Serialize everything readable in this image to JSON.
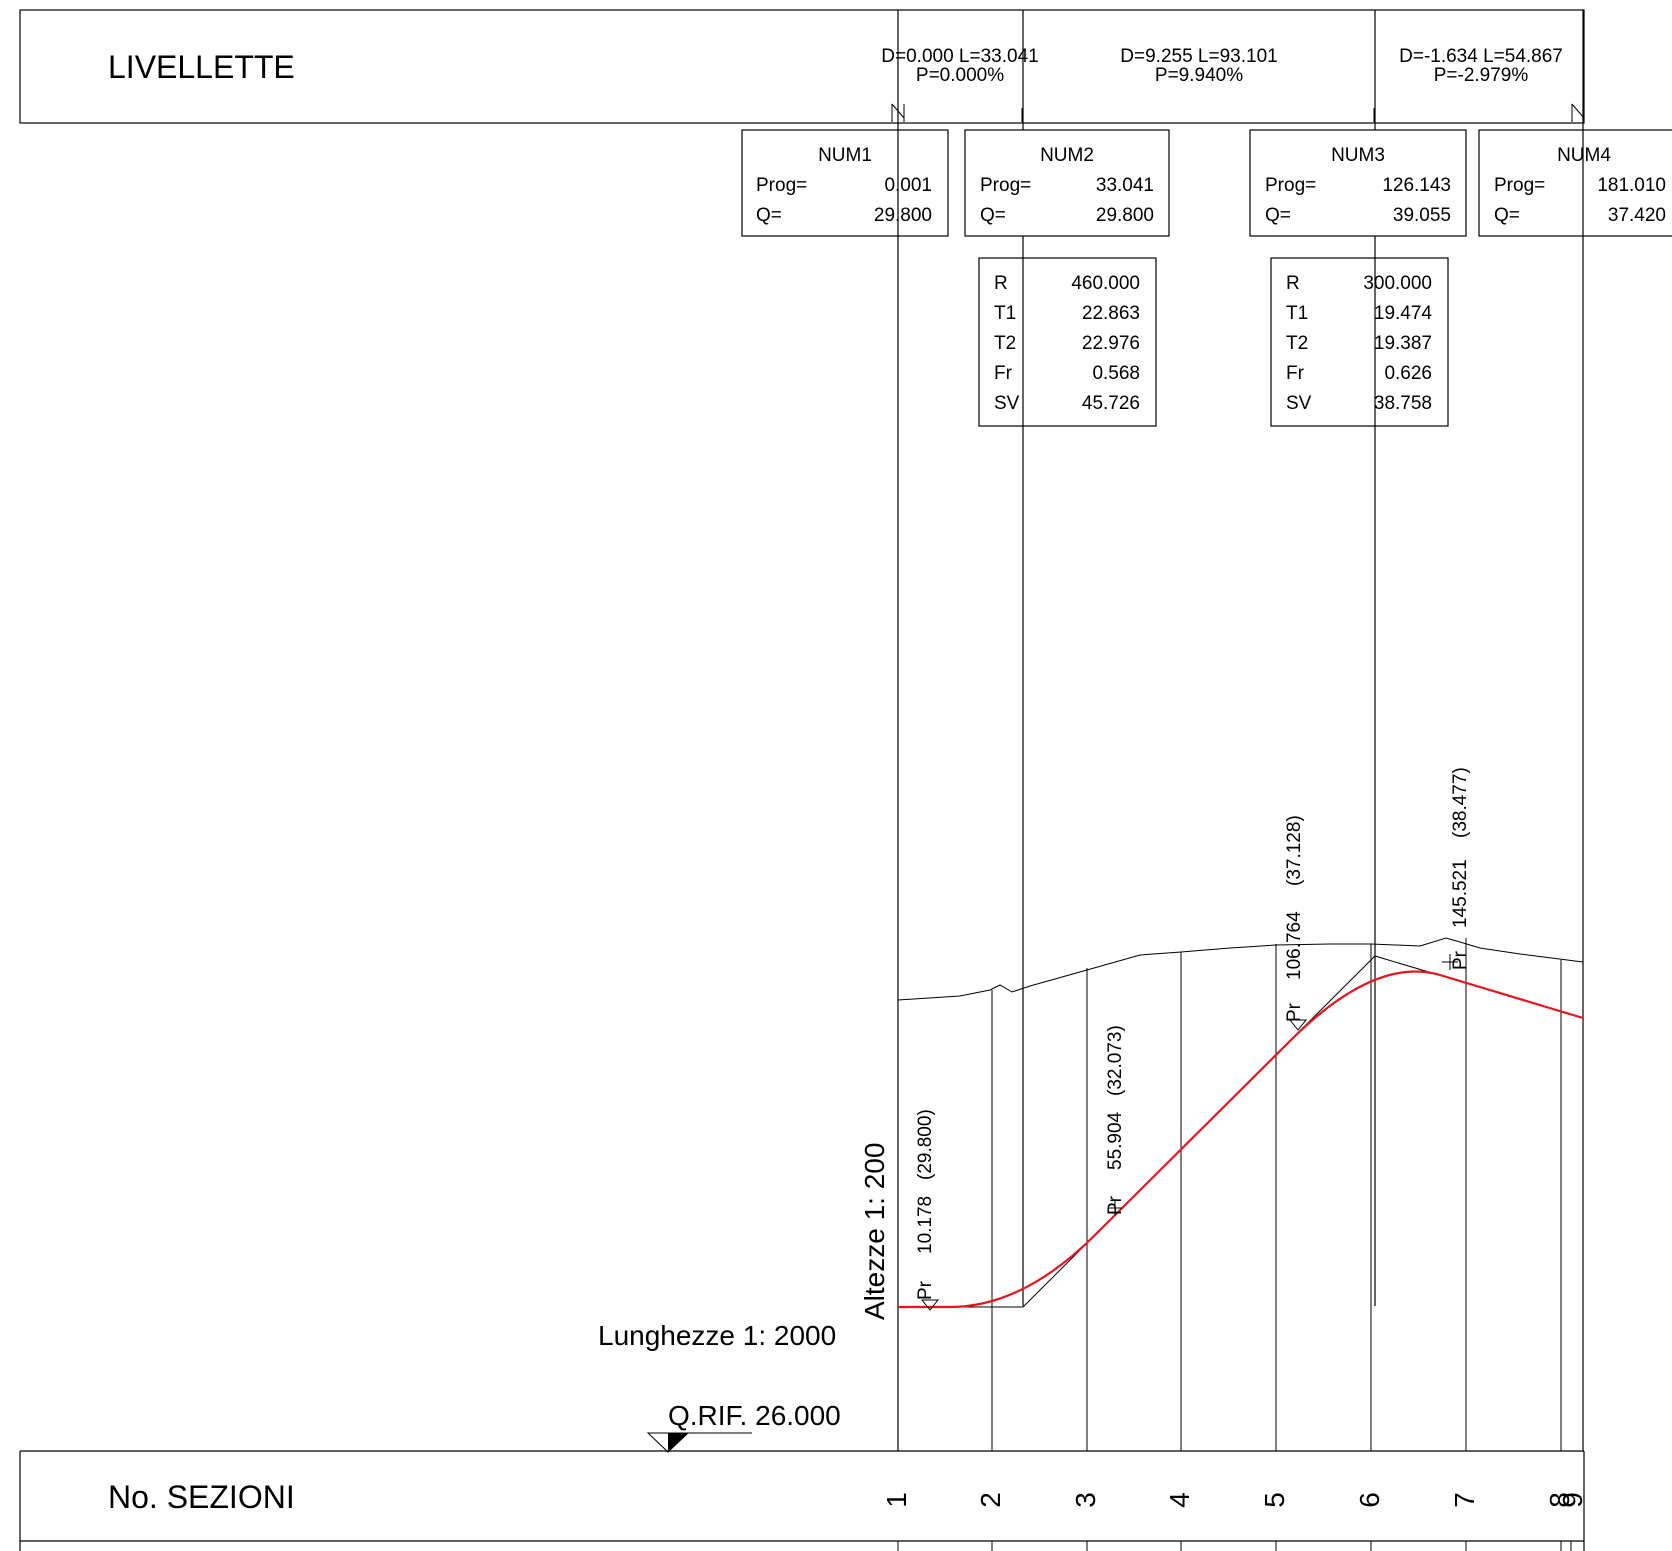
{
  "header": {
    "title": "LIVELLETTE",
    "segments": [
      {
        "line1": "D=0.000 L=33.041",
        "line2": "P=0.000%"
      },
      {
        "line1": "D=9.255 L=93.101",
        "line2": "P=9.940%"
      },
      {
        "line1": "D=-1.634 L=54.867",
        "line2": "P=-2.979%"
      }
    ]
  },
  "vertices": [
    {
      "name": "NUM1",
      "prog_label": "Prog=",
      "prog": "0.001",
      "q_label": "Q=",
      "q": "29.800"
    },
    {
      "name": "NUM2",
      "prog_label": "Prog=",
      "prog": "33.041",
      "q_label": "Q=",
      "q": "29.800"
    },
    {
      "name": "NUM3",
      "prog_label": "Prog=",
      "prog": "126.143",
      "q_label": "Q=",
      "q": "39.055"
    },
    {
      "name": "NUM4",
      "prog_label": "Prog=",
      "prog": "181.010",
      "q_label": "Q=",
      "q": "37.420"
    }
  ],
  "curves": [
    {
      "rows": [
        [
          "R",
          "460.000"
        ],
        [
          "T1",
          "22.863"
        ],
        [
          "T2",
          "22.976"
        ],
        [
          "Fr",
          "0.568"
        ],
        [
          "SV",
          "45.726"
        ]
      ]
    },
    {
      "rows": [
        [
          "R",
          "300.000"
        ],
        [
          "T1",
          "19.474"
        ],
        [
          "T2",
          "19.387"
        ],
        [
          "Fr",
          "0.626"
        ],
        [
          "SV",
          "38.758"
        ]
      ]
    }
  ],
  "profile_points": [
    {
      "tag": "Pr",
      "prog": "10.178",
      "quota": "(29.800)"
    },
    {
      "tag": "Pr",
      "prog": "55.904",
      "quota": "(32.073)"
    },
    {
      "tag": "Pr",
      "prog": "106.764",
      "quota": "(37.128)"
    },
    {
      "tag": "Pr",
      "prog": "145.521",
      "quota": "(38.477)"
    }
  ],
  "scales": {
    "heights": "Altezze 1: 200",
    "lengths": "Lunghezze 1: 2000",
    "reference": "Q.RIF. 26.000"
  },
  "sections": {
    "title": "No. SEZIONI",
    "numbers": [
      "1",
      "2",
      "3",
      "4",
      "5",
      "6",
      "7",
      "8",
      "9"
    ]
  },
  "colors": {
    "design_profile": "#e8141e",
    "lines": "#000000"
  }
}
